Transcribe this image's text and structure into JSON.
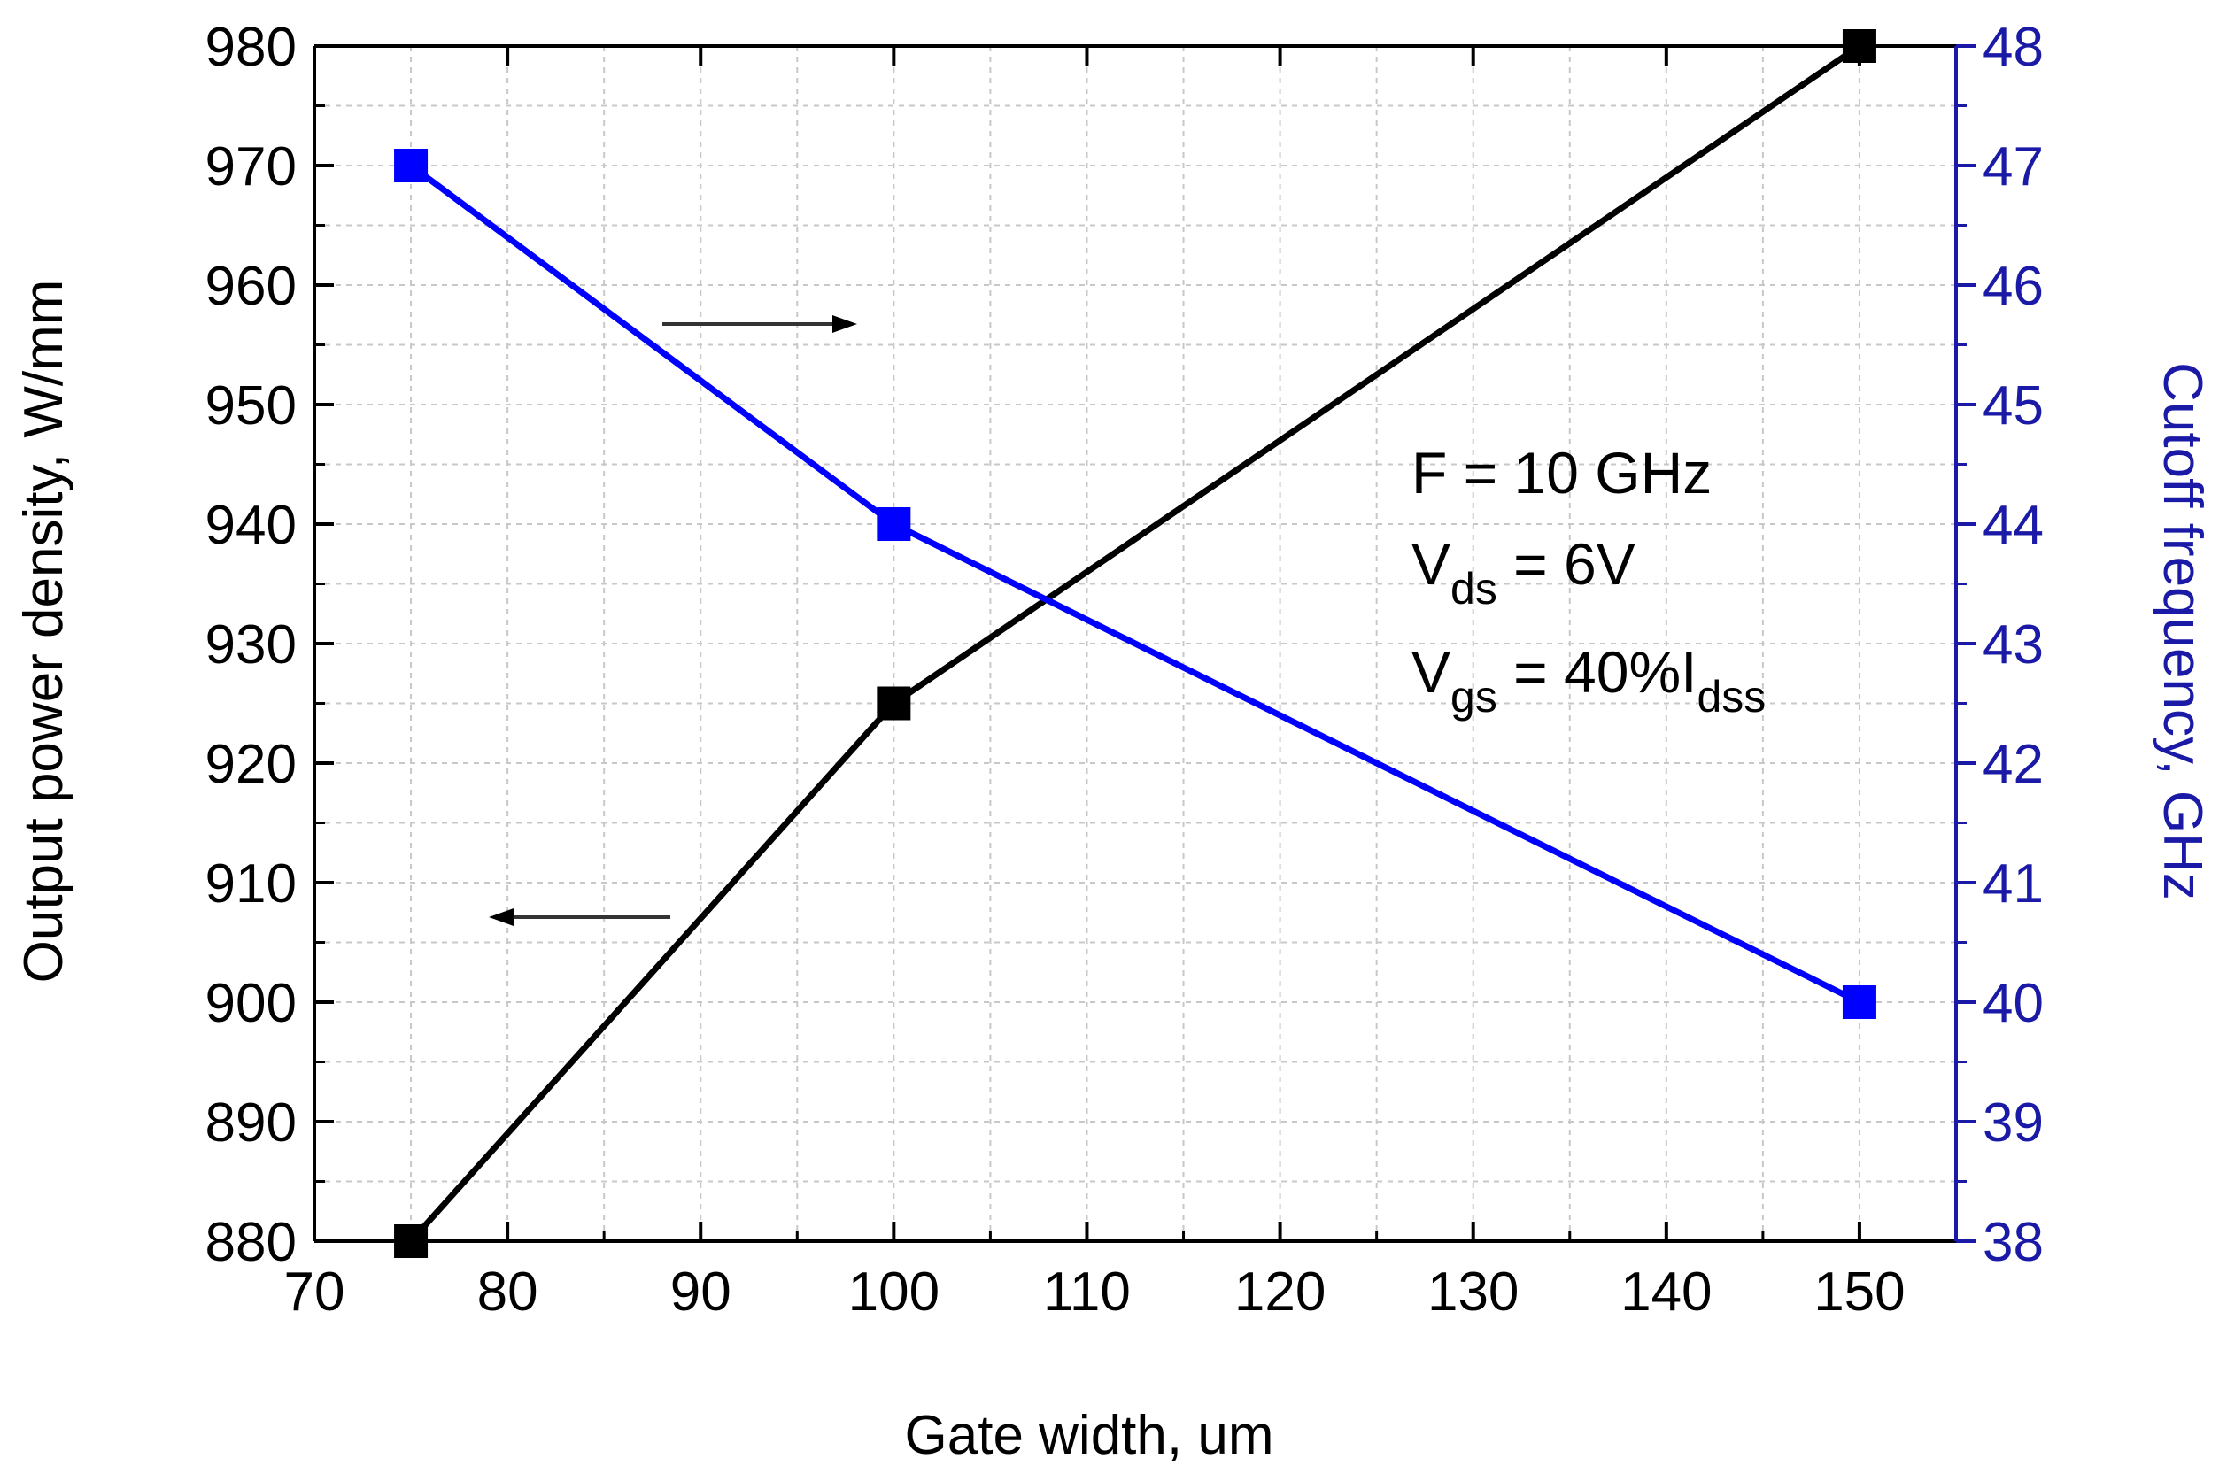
{
  "colors": {
    "left_series": "#000000",
    "right_series": "#0000ff",
    "right_axis": "#1a1aa6",
    "grid": "#c8c8c8"
  },
  "chart_data": {
    "type": "line",
    "xlabel": "Gate width, um",
    "ylabel_left": "Output power density, W/mm",
    "ylabel_right": "Cutoff frequency, GHz",
    "xlim": [
      70,
      155
    ],
    "ylim_left": [
      880,
      980
    ],
    "ylim_right": [
      38,
      48
    ],
    "x_ticks": [
      "70",
      "80",
      "90",
      "100",
      "110",
      "120",
      "130",
      "140",
      "150"
    ],
    "y_left_ticks": [
      "880",
      "890",
      "900",
      "910",
      "920",
      "930",
      "940",
      "950",
      "960",
      "970",
      "980"
    ],
    "y_right_ticks": [
      "38",
      "39",
      "40",
      "41",
      "42",
      "43",
      "44",
      "45",
      "46",
      "47",
      "48"
    ],
    "grid": true,
    "series": [
      {
        "name": "Output power density",
        "axis": "left",
        "marker": "square",
        "x": [
          75,
          100,
          150
        ],
        "values": [
          880,
          925,
          980
        ]
      },
      {
        "name": "Cutoff frequency",
        "axis": "right",
        "marker": "square",
        "x": [
          75,
          100,
          150
        ],
        "values": [
          47,
          44,
          40
        ]
      }
    ],
    "annotations": {
      "line1": "F = 10 GHz",
      "line2_main": "V",
      "line2_sub": "ds",
      "line2_rest": " = 6V",
      "line3_main": "V",
      "line3_sub": "gs",
      "line3_mid": " = 40%I",
      "line3_sub2": "dss"
    }
  }
}
